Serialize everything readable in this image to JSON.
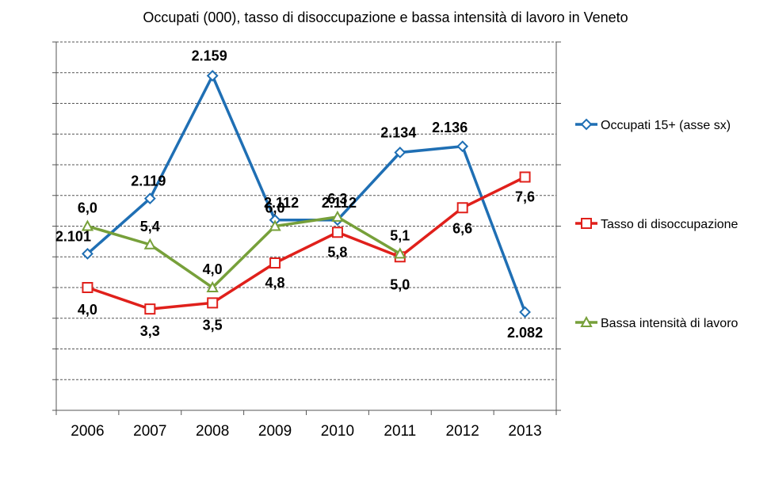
{
  "chart_data": {
    "type": "line",
    "title": "Occupati (000), tasso di disoccupazione  e bassa intensità di lavoro in Veneto",
    "categories": [
      "2006",
      "2007",
      "2008",
      "2009",
      "2010",
      "2011",
      "2012",
      "2013"
    ],
    "axes": {
      "left": {
        "min": 2050,
        "max": 2170
      },
      "right": {
        "min": 0,
        "max": 12
      }
    },
    "grid": "horizontal dashed",
    "legend_position": "right",
    "series": [
      {
        "name": "Occupati 15+ (asse sx)",
        "axis": "left",
        "color": "#1f6fb4",
        "marker": "diamond",
        "values": [
          2101,
          2119,
          2159,
          2112,
          2112,
          2134,
          2136,
          2082
        ],
        "labels": [
          "2.101",
          "2.119",
          "2.159",
          "2.112",
          "2.112",
          "2.134",
          "2.136",
          "2.082"
        ]
      },
      {
        "name": "Tasso di disoccupazione",
        "axis": "right",
        "color": "#e0201b",
        "marker": "square",
        "values": [
          4.0,
          3.3,
          3.5,
          4.8,
          5.8,
          5.0,
          6.6,
          7.6
        ],
        "labels": [
          "4,0",
          "3,3",
          "3,5",
          "4,8",
          "5,8",
          "5,0",
          "6,6",
          "7,6"
        ]
      },
      {
        "name": "Bassa intensità di lavoro",
        "axis": "right",
        "color": "#77a03a",
        "marker": "triangle",
        "values": [
          6.0,
          5.4,
          4.0,
          6.0,
          6.3,
          5.1,
          null,
          null
        ],
        "labels": [
          "6,0",
          "5,4",
          "4,0",
          "6,0",
          "6,3",
          "5,1",
          "",
          ""
        ]
      }
    ]
  }
}
